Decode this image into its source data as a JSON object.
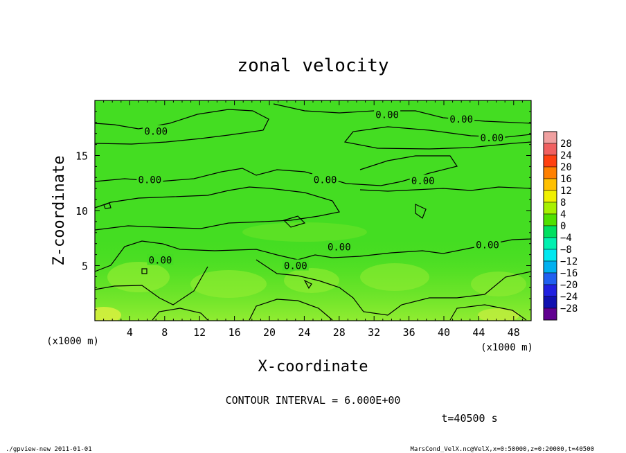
{
  "chart_data": {
    "type": "heatmap",
    "title": "zonal velocity",
    "xlabel": "X-coordinate",
    "ylabel": "Z-coordinate",
    "x_unit_label": "(x1000 m)",
    "y_unit_label": "(x1000 m)",
    "x_ticks": [
      "4",
      "8",
      "12",
      "16",
      "20",
      "24",
      "28",
      "32",
      "36",
      "40",
      "44",
      "48"
    ],
    "y_ticks": [
      "5",
      "10",
      "15"
    ],
    "xlim": [
      0,
      50
    ],
    "ylim": [
      0,
      20
    ],
    "contour_interval_text": "CONTOUR INTERVAL = 6.000E+00",
    "time_text": "t=40500 s",
    "contour_labels": [
      {
        "text": "0.00",
        "x": 33.5,
        "y": 18.7
      },
      {
        "text": "0.00",
        "x": 42.0,
        "y": 18.3
      },
      {
        "text": "0.00",
        "x": 45.5,
        "y": 16.6
      },
      {
        "text": "0.00",
        "x": 7.0,
        "y": 17.2
      },
      {
        "text": "0.00",
        "x": 6.3,
        "y": 12.8
      },
      {
        "text": "0.00",
        "x": 26.4,
        "y": 12.8
      },
      {
        "text": "0.00",
        "x": 37.6,
        "y": 12.7
      },
      {
        "text": "0.00",
        "x": 28.0,
        "y": 6.7
      },
      {
        "text": "0.00",
        "x": 45.0,
        "y": 6.9
      },
      {
        "text": "0.00",
        "x": 7.5,
        "y": 5.5
      },
      {
        "text": "0.00",
        "x": 23.0,
        "y": 5.0
      }
    ],
    "colorbar": {
      "levels": [
        "28",
        "24",
        "20",
        "16",
        "12",
        "8",
        "4",
        "0",
        "−4",
        "−8",
        "−12",
        "−16",
        "−20",
        "−24",
        "−28"
      ],
      "colors": [
        "#f0a0a0",
        "#f06060",
        "#ff4010",
        "#ff8000",
        "#ffc000",
        "#f0f000",
        "#a8f000",
        "#50e000",
        "#00e060",
        "#00f0b0",
        "#00e8f0",
        "#00b0f0",
        "#2060f0",
        "#2020e0",
        "#1010b0",
        "#600090"
      ]
    },
    "field_base_color": "#44dd22",
    "field_light_color": "#99ee33"
  },
  "footer": {
    "left": "./gpview-new   2011-01-01",
    "right": "MarsCond_VelX.nc@VelX,x=0:50000,z=0:20000,t=40500"
  }
}
